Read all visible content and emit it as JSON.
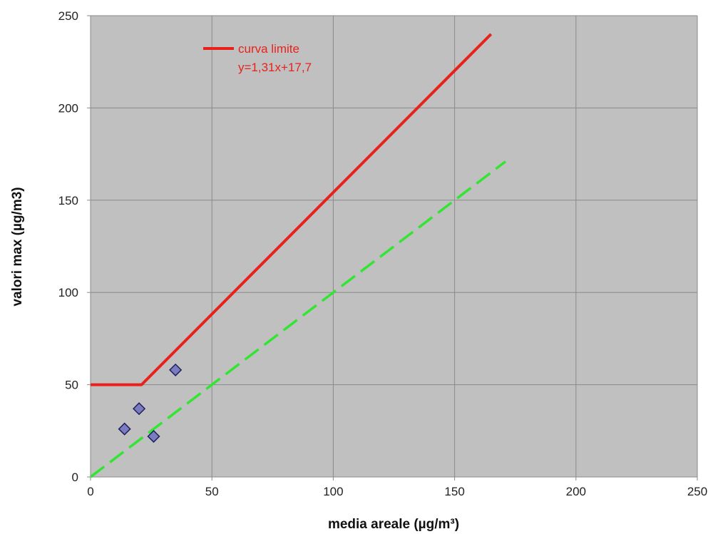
{
  "chart_data": {
    "type": "scatter",
    "xlabel": "media areale (µg/m³)",
    "ylabel": "valori max (µg/m3)",
    "xlim": [
      0,
      250
    ],
    "ylim": [
      0,
      250
    ],
    "x_ticks": [
      "0",
      "50",
      "100",
      "150",
      "200",
      "250"
    ],
    "y_ticks": [
      "0",
      "50",
      "100",
      "150",
      "200",
      "250"
    ],
    "grid": true,
    "plot_background": "#c0c0c0",
    "legend_position": "top-left",
    "series": [
      {
        "name": "curva limite",
        "kind": "line",
        "color": "#e8221b",
        "style": "solid",
        "x": [
          0,
          21,
          165
        ],
        "y": [
          50,
          50,
          240
        ]
      },
      {
        "kind": "line",
        "color": "#33e533",
        "style": "dashed",
        "x": [
          0,
          171
        ],
        "y": [
          0,
          171
        ]
      },
      {
        "kind": "scatter",
        "marker": "diamond",
        "color": "#7b7bc0",
        "edge_color": "#1f1f5a",
        "x": [
          14,
          20,
          26,
          35
        ],
        "y": [
          26,
          37,
          22,
          58
        ]
      }
    ],
    "annotations": [
      "y=1,31x+17,7"
    ]
  }
}
